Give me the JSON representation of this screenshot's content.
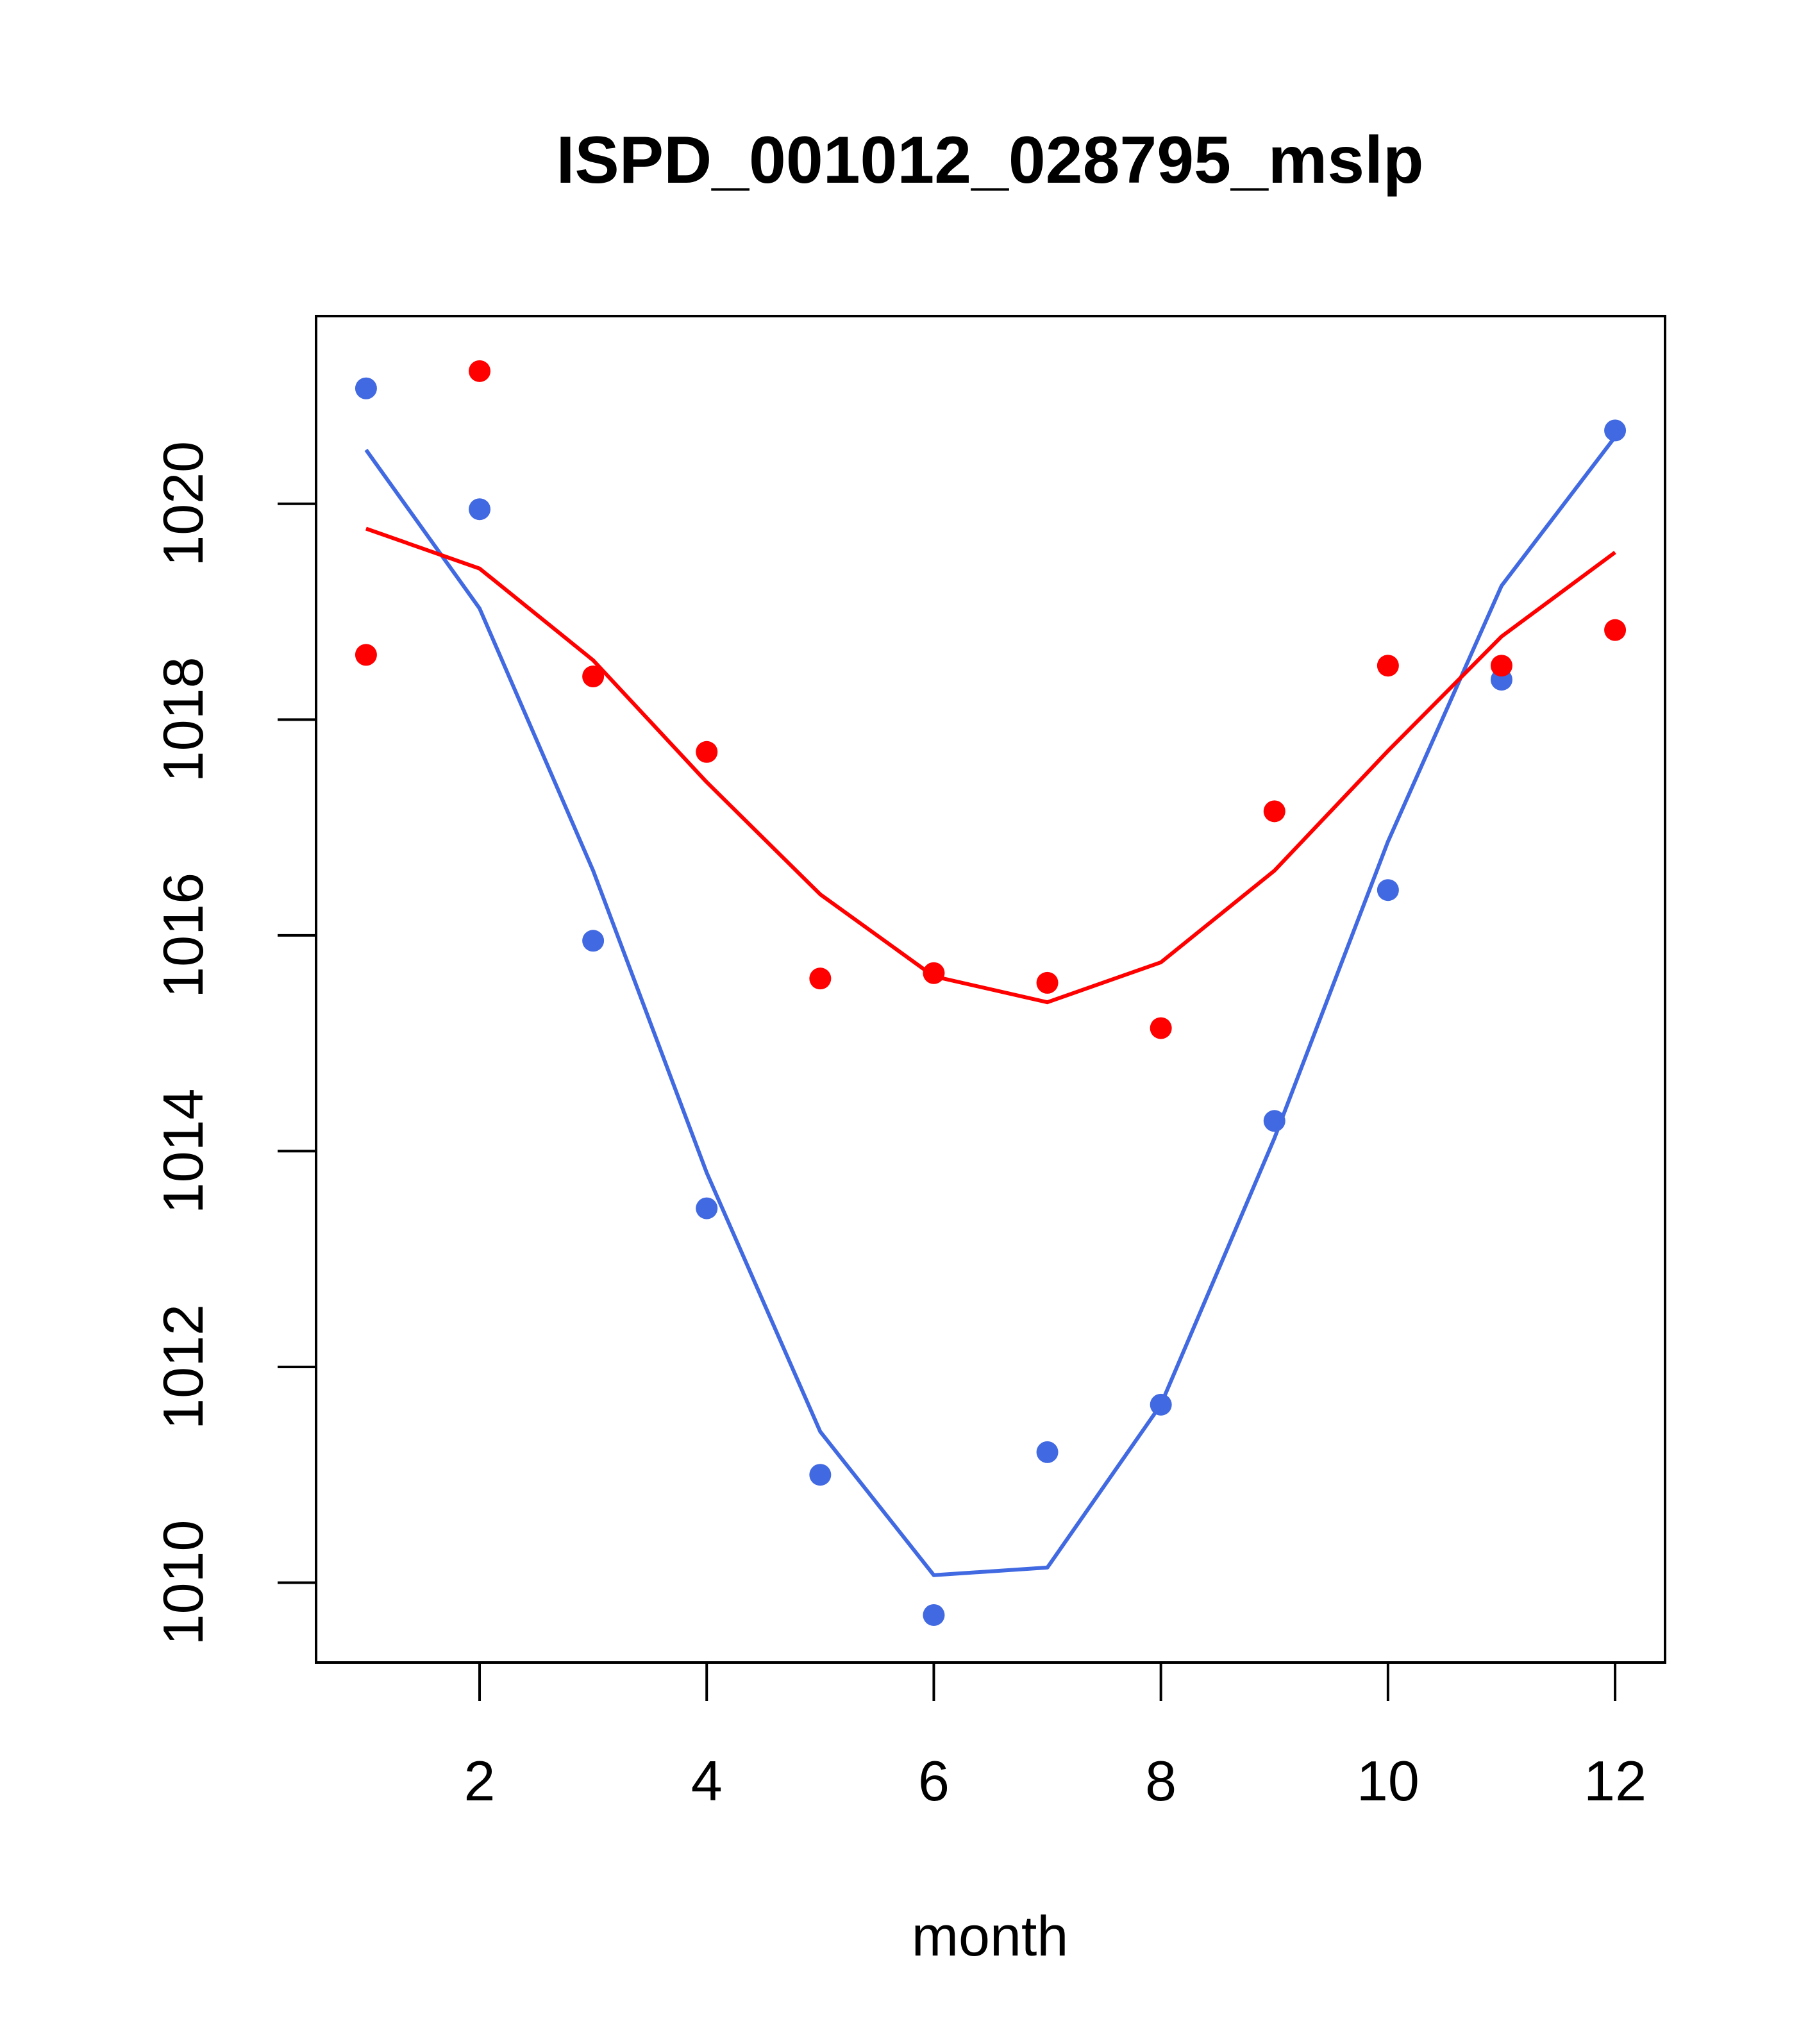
{
  "chart_data": {
    "type": "scatter",
    "title": "ISPD_001012_028795_mslp",
    "xlabel": "month",
    "ylabel": "",
    "xlim": [
      0.56,
      12.44
    ],
    "ylim": [
      1009.26,
      1021.74
    ],
    "x_ticks": [
      2,
      4,
      6,
      8,
      10,
      12
    ],
    "y_ticks": [
      1010,
      1012,
      1014,
      1016,
      1018,
      1020
    ],
    "x_tick_labels": [
      "2",
      "4",
      "6",
      "8",
      "10",
      "12"
    ],
    "y_tick_labels": [
      "1010",
      "1012",
      "1014",
      "1016",
      "1018",
      "1020"
    ],
    "grid": false,
    "legend": "none",
    "series": [
      {
        "name": "blue points",
        "kind": "points",
        "color": "#4169E1",
        "x": [
          1,
          2,
          3,
          4,
          5,
          6,
          7,
          8,
          9,
          10,
          11,
          12
        ],
        "values": [
          1021.07,
          1019.95,
          1015.95,
          1013.47,
          1011.0,
          1009.7,
          1011.21,
          1011.65,
          1014.28,
          1016.42,
          1018.37,
          1020.68
        ]
      },
      {
        "name": "blue line",
        "kind": "line",
        "color": "#4169E1",
        "x": [
          1,
          2,
          3,
          4,
          5,
          6,
          7,
          8,
          9,
          10,
          11,
          12
        ],
        "values": [
          1020.5,
          1019.03,
          1016.6,
          1013.8,
          1011.4,
          1010.07,
          1010.14,
          1011.65,
          1014.12,
          1016.87,
          1019.24,
          1020.62
        ]
      },
      {
        "name": "red points",
        "kind": "points",
        "color": "#FF0000",
        "x": [
          1,
          2,
          3,
          4,
          5,
          6,
          7,
          8,
          9,
          10,
          11,
          12
        ],
        "values": [
          1018.6,
          1021.23,
          1018.4,
          1017.7,
          1015.6,
          1015.65,
          1015.56,
          1015.14,
          1017.15,
          1018.5,
          1018.5,
          1018.83
        ]
      },
      {
        "name": "red line",
        "kind": "line",
        "color": "#FF0000",
        "x": [
          1,
          2,
          3,
          4,
          5,
          6,
          7,
          8,
          9,
          10,
          11,
          12
        ],
        "values": [
          1019.77,
          1019.4,
          1018.55,
          1017.42,
          1016.38,
          1015.62,
          1015.38,
          1015.75,
          1016.6,
          1017.71,
          1018.77,
          1019.55
        ]
      }
    ]
  }
}
